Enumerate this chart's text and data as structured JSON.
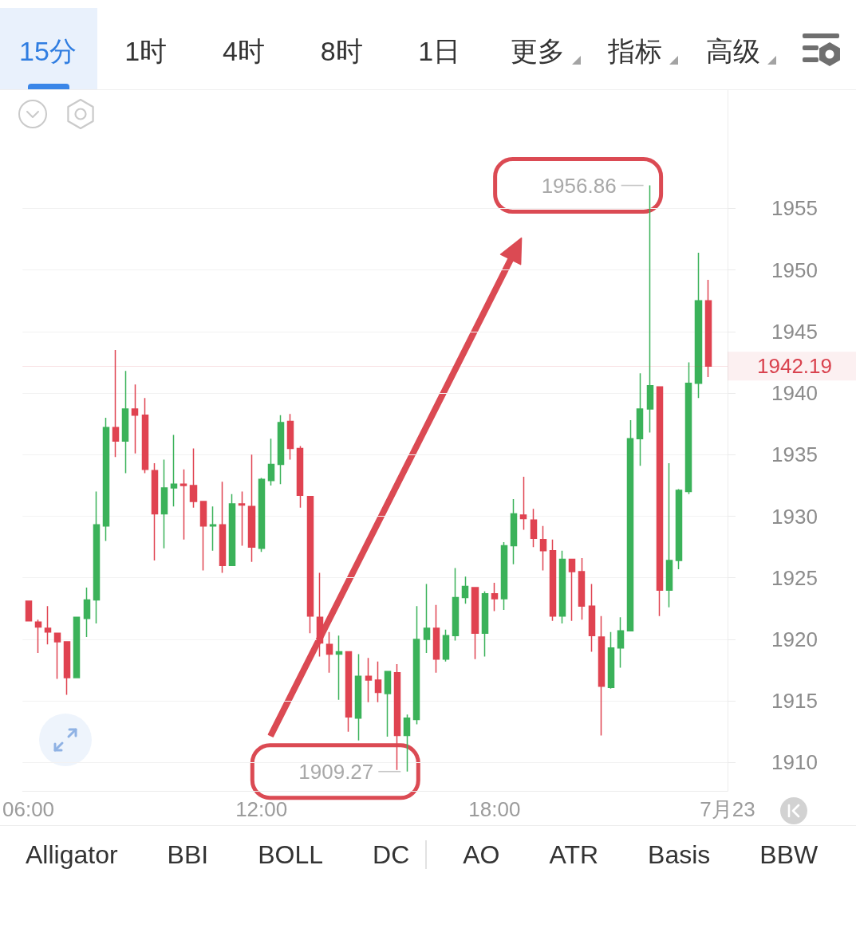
{
  "chart_data": {
    "type": "candlestick",
    "x": [
      6,
      6.25,
      6.5,
      6.75,
      7,
      7.25,
      7.5,
      7.75,
      8,
      8.25,
      8.5,
      8.75,
      9,
      9.25,
      9.5,
      9.75,
      10,
      10.25,
      10.5,
      10.75,
      11,
      11.25,
      11.5,
      11.75,
      12,
      12.25,
      12.5,
      12.75,
      13,
      13.25,
      13.5,
      13.75,
      14,
      14.25,
      14.5,
      14.75,
      15,
      15.25,
      15.5,
      15.75,
      16,
      16.25,
      16.5,
      16.75,
      17,
      17.25,
      17.5,
      17.75,
      18,
      18.25,
      18.5,
      18.75,
      19,
      19.25,
      19.5,
      19.75,
      20,
      20.25,
      20.5,
      20.75,
      21,
      21.25,
      21.5,
      21.75,
      22,
      22.25,
      22.5,
      22.75,
      23,
      23.25,
      23.5
    ],
    "ohlc": [
      [
        1923.1,
        1923.1,
        1921.5,
        1921.5
      ],
      [
        1921.4,
        1921.6,
        1918.9,
        1921.0
      ],
      [
        1920.9,
        1922.7,
        1919.6,
        1920.6
      ],
      [
        1920.5,
        1920.5,
        1916.8,
        1919.8
      ],
      [
        1919.8,
        1919.8,
        1915.5,
        1916.9
      ],
      [
        1916.9,
        1921.8,
        1916.9,
        1921.8
      ],
      [
        1921.7,
        1924.2,
        1920.2,
        1923.2
      ],
      [
        1923.2,
        1932.0,
        1921.3,
        1929.3
      ],
      [
        1929.2,
        1938.0,
        1928.0,
        1937.2
      ],
      [
        1937.2,
        1943.5,
        1934.8,
        1936.1
      ],
      [
        1936.1,
        1941.8,
        1933.5,
        1938.7
      ],
      [
        1938.7,
        1940.7,
        1935.1,
        1938.2
      ],
      [
        1938.2,
        1939.6,
        1933.5,
        1933.8
      ],
      [
        1933.7,
        1934.3,
        1926.4,
        1930.2
      ],
      [
        1930.2,
        1934.6,
        1927.4,
        1932.3
      ],
      [
        1932.3,
        1936.6,
        1930.8,
        1932.6
      ],
      [
        1932.6,
        1933.8,
        1928.1,
        1932.5
      ],
      [
        1932.5,
        1935.5,
        1930.7,
        1931.2
      ],
      [
        1931.2,
        1931.2,
        1925.6,
        1929.2
      ],
      [
        1929.2,
        1930.8,
        1927.2,
        1929.3
      ],
      [
        1929.3,
        1932.8,
        1925.4,
        1926.0
      ],
      [
        1926.0,
        1931.8,
        1926.0,
        1931.0
      ],
      [
        1931.0,
        1932.0,
        1927.6,
        1930.9
      ],
      [
        1930.8,
        1935.0,
        1926.3,
        1927.5
      ],
      [
        1927.4,
        1933.1,
        1927.1,
        1933.0
      ],
      [
        1932.9,
        1936.3,
        1932.5,
        1934.2
      ],
      [
        1934.2,
        1938.2,
        1932.6,
        1937.6
      ],
      [
        1937.7,
        1938.3,
        1934.6,
        1935.5
      ],
      [
        1935.5,
        1935.7,
        1930.7,
        1931.7
      ],
      [
        1931.6,
        1931.6,
        1920.5,
        1921.9
      ],
      [
        1921.8,
        1925.4,
        1918.6,
        1919.7
      ],
      [
        1919.6,
        1920.6,
        1917.3,
        1918.8
      ],
      [
        1918.8,
        1920.3,
        1915.1,
        1919.0
      ],
      [
        1919.0,
        1919.0,
        1912.5,
        1913.7
      ],
      [
        1913.6,
        1918.8,
        1911.8,
        1917.0
      ],
      [
        1917.0,
        1918.5,
        1914.9,
        1916.7
      ],
      [
        1916.7,
        1918.2,
        1914.9,
        1915.7
      ],
      [
        1915.6,
        1917.4,
        1912.1,
        1917.4
      ],
      [
        1917.3,
        1918.0,
        1909.4,
        1912.2
      ],
      [
        1912.2,
        1913.9,
        1909.27,
        1913.6
      ],
      [
        1913.5,
        1922.7,
        1913.1,
        1920.0
      ],
      [
        1920.0,
        1924.5,
        1918.9,
        1920.9
      ],
      [
        1920.9,
        1922.8,
        1917.3,
        1918.4
      ],
      [
        1918.4,
        1920.8,
        1918.2,
        1920.3
      ],
      [
        1920.3,
        1925.8,
        1919.9,
        1923.4
      ],
      [
        1923.4,
        1925.1,
        1922.9,
        1924.3
      ],
      [
        1924.2,
        1924.2,
        1918.4,
        1920.5
      ],
      [
        1920.5,
        1923.9,
        1918.6,
        1923.7
      ],
      [
        1923.7,
        1924.6,
        1922.3,
        1923.3
      ],
      [
        1923.3,
        1927.9,
        1922.4,
        1927.6
      ],
      [
        1927.6,
        1931.4,
        1926.1,
        1930.2
      ],
      [
        1930.1,
        1933.2,
        1928.9,
        1929.8
      ],
      [
        1929.7,
        1930.6,
        1927.5,
        1928.2
      ],
      [
        1928.1,
        1929.2,
        1925.6,
        1927.2
      ],
      [
        1927.2,
        1928.1,
        1921.5,
        1921.9
      ],
      [
        1921.9,
        1927.2,
        1921.3,
        1926.5
      ],
      [
        1926.5,
        1926.5,
        1921.5,
        1925.5
      ],
      [
        1925.5,
        1926.6,
        1921.6,
        1922.7
      ],
      [
        1922.7,
        1924.5,
        1919.0,
        1920.3
      ],
      [
        1920.2,
        1921.9,
        1912.2,
        1916.2
      ],
      [
        1916.1,
        1920.6,
        1916.0,
        1919.3
      ],
      [
        1919.3,
        1921.8,
        1917.7,
        1920.7
      ],
      [
        1920.7,
        1937.8,
        1920.7,
        1936.3
      ],
      [
        1936.3,
        1941.6,
        1934.1,
        1938.7
      ],
      [
        1938.7,
        1956.86,
        1936.8,
        1940.6
      ],
      [
        1940.5,
        1940.5,
        1921.9,
        1924.0
      ],
      [
        1924.0,
        1934.3,
        1922.6,
        1926.4
      ],
      [
        1926.4,
        1932.2,
        1925.7,
        1932.1
      ],
      [
        1932.0,
        1942.5,
        1931.8,
        1940.8
      ],
      [
        1940.8,
        1951.4,
        1939.6,
        1947.5
      ],
      [
        1947.5,
        1949.2,
        1941.3,
        1942.19
      ]
    ],
    "colors": [
      "#e04351",
      "#e04351",
      "#e04351",
      "#e04351",
      "#e04351",
      "#3bb25a",
      "#3bb25a",
      "#3bb25a",
      "#3bb25a",
      "#e04351",
      "#3bb25a",
      "#e04351",
      "#e04351",
      "#e04351",
      "#3bb25a",
      "#3bb25a",
      "#e04351",
      "#e04351",
      "#e04351",
      "#3bb25a",
      "#e04351",
      "#3bb25a",
      "#e04351",
      "#e04351",
      "#3bb25a",
      "#3bb25a",
      "#3bb25a",
      "#e04351",
      "#e04351",
      "#e04351",
      "#e04351",
      "#e04351",
      "#3bb25a",
      "#e04351",
      "#3bb25a",
      "#e04351",
      "#e04351",
      "#3bb25a",
      "#e04351",
      "#3bb25a",
      "#3bb25a",
      "#3bb25a",
      "#e04351",
      "#3bb25a",
      "#3bb25a",
      "#3bb25a",
      "#e04351",
      "#3bb25a",
      "#e04351",
      "#3bb25a",
      "#3bb25a",
      "#e04351",
      "#e04351",
      "#e04351",
      "#e04351",
      "#3bb25a",
      "#e04351",
      "#e04351",
      "#e04351",
      "#e04351",
      "#3bb25a",
      "#3bb25a",
      "#3bb25a",
      "#3bb25a",
      "#3bb25a",
      "#e04351",
      "#3bb25a",
      "#3bb25a",
      "#3bb25a",
      "#3bb25a",
      "#e04351"
    ],
    "xlim": [
      5.85,
      24
    ],
    "xticks": [
      {
        "value": 6,
        "label": "06:00"
      },
      {
        "value": 12,
        "label": "12:00"
      },
      {
        "value": 18,
        "label": "18:00"
      },
      {
        "value": 24,
        "label": "7月23"
      }
    ],
    "ylim": [
      1907.7,
      1964.6
    ],
    "yticks": [
      1910,
      1915,
      1920,
      1925,
      1930,
      1935,
      1940,
      1945,
      1950,
      1955
    ],
    "grid": "y",
    "ref_lines": [
      {
        "axis": "y",
        "value": 1942.19,
        "label": "1942.19",
        "color": "#d9434f"
      }
    ],
    "annotations": [
      "15分",
      "1时",
      "4时",
      "8时",
      "1日",
      "更多",
      "指标",
      "高级",
      {
        "text": "1956.86",
        "x": 22,
        "y": 1956.86
      },
      {
        "text": "1909.27",
        "x": 15.75,
        "y": 1909.27
      },
      "Alligator",
      "BBI",
      "BOLL",
      "DC",
      "AO",
      "ATR",
      "Basis",
      "BBW"
    ]
  }
}
